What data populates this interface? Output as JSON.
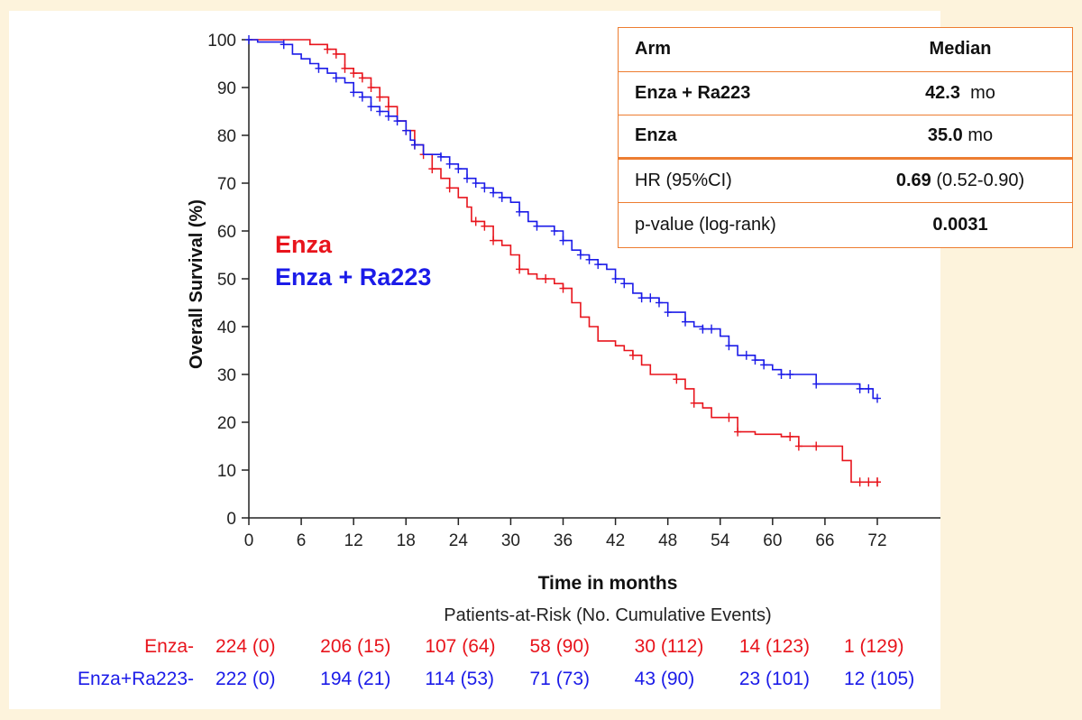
{
  "chart_data": {
    "type": "line",
    "title": "",
    "xlabel": "Time in months",
    "ylabel": "Overall Survival (%)",
    "xlim": [
      0,
      72
    ],
    "ylim": [
      0,
      100
    ],
    "x_ticks": [
      "0",
      "6",
      "12",
      "18",
      "24",
      "30",
      "36",
      "42",
      "48",
      "54",
      "60",
      "66",
      "72"
    ],
    "y_ticks": [
      "0",
      "10",
      "20",
      "30",
      "40",
      "50",
      "60",
      "70",
      "80",
      "90",
      "100"
    ],
    "grid": false,
    "legend": {
      "position": "upper-left-inside",
      "entries": [
        "Enza",
        "Enza + Ra223"
      ]
    },
    "series": [
      {
        "name": "Enza",
        "color": "#e8141c",
        "points": [
          [
            0,
            100
          ],
          [
            5.5,
            100
          ],
          [
            7,
            99
          ],
          [
            9,
            98
          ],
          [
            10,
            97
          ],
          [
            11,
            94
          ],
          [
            12,
            93
          ],
          [
            13,
            92
          ],
          [
            14,
            90
          ],
          [
            15,
            88
          ],
          [
            16,
            86
          ],
          [
            17,
            83
          ],
          [
            18,
            81
          ],
          [
            19,
            78
          ],
          [
            20,
            76
          ],
          [
            21,
            73
          ],
          [
            22,
            71
          ],
          [
            23,
            69
          ],
          [
            24,
            67
          ],
          [
            25,
            65
          ],
          [
            25.5,
            62
          ],
          [
            27,
            61
          ],
          [
            28,
            58
          ],
          [
            29,
            57
          ],
          [
            30,
            55
          ],
          [
            31,
            52
          ],
          [
            32,
            51
          ],
          [
            33,
            50
          ],
          [
            35,
            49
          ],
          [
            36,
            48
          ],
          [
            37,
            45
          ],
          [
            38,
            42
          ],
          [
            39,
            40
          ],
          [
            40,
            37
          ],
          [
            42,
            36
          ],
          [
            43,
            35
          ],
          [
            44,
            34
          ],
          [
            45,
            32
          ],
          [
            46,
            30
          ],
          [
            48,
            30
          ],
          [
            49,
            29
          ],
          [
            50,
            27
          ],
          [
            51,
            24
          ],
          [
            52,
            23
          ],
          [
            53,
            21
          ],
          [
            55,
            21
          ],
          [
            56,
            18
          ],
          [
            58,
            17.5
          ],
          [
            60,
            17.5
          ],
          [
            61,
            17
          ],
          [
            63,
            15
          ],
          [
            66,
            15
          ],
          [
            68,
            12
          ],
          [
            69,
            7.5
          ],
          [
            72,
            7.5
          ]
        ],
        "censor_x": [
          9,
          10,
          11,
          12,
          13,
          14,
          15,
          16,
          18,
          19,
          20,
          21,
          23,
          26,
          27,
          28,
          31,
          34,
          36,
          44,
          49,
          51,
          55,
          56,
          62,
          63,
          65,
          70,
          71,
          72,
          72
        ]
      },
      {
        "name": "Enza + Ra223",
        "color": "#1b1be8",
        "points": [
          [
            0,
            100
          ],
          [
            1,
            99.5
          ],
          [
            4,
            99
          ],
          [
            5,
            97
          ],
          [
            6,
            96
          ],
          [
            7,
            95
          ],
          [
            8,
            94
          ],
          [
            9,
            93
          ],
          [
            10,
            92
          ],
          [
            11,
            91
          ],
          [
            12,
            89
          ],
          [
            13,
            88
          ],
          [
            14,
            86
          ],
          [
            15,
            85
          ],
          [
            16,
            84
          ],
          [
            17,
            83
          ],
          [
            18,
            81
          ],
          [
            18.5,
            79
          ],
          [
            19,
            78
          ],
          [
            20,
            76
          ],
          [
            22,
            75.5
          ],
          [
            23,
            74
          ],
          [
            24,
            73
          ],
          [
            25,
            71
          ],
          [
            26,
            70
          ],
          [
            27,
            69
          ],
          [
            28,
            68
          ],
          [
            29,
            67
          ],
          [
            30,
            66
          ],
          [
            31,
            64
          ],
          [
            32,
            62
          ],
          [
            33,
            61
          ],
          [
            35,
            60
          ],
          [
            36,
            58
          ],
          [
            37,
            56
          ],
          [
            38,
            55
          ],
          [
            39,
            54
          ],
          [
            40,
            53
          ],
          [
            41,
            52
          ],
          [
            42,
            50
          ],
          [
            43,
            49
          ],
          [
            44,
            47
          ],
          [
            45,
            46
          ],
          [
            47,
            45
          ],
          [
            48,
            43
          ],
          [
            50,
            41
          ],
          [
            51,
            40
          ],
          [
            52,
            39.5
          ],
          [
            54,
            38
          ],
          [
            55,
            36
          ],
          [
            56,
            34
          ],
          [
            58,
            33
          ],
          [
            59,
            32
          ],
          [
            60,
            31
          ],
          [
            61,
            30
          ],
          [
            65,
            28
          ],
          [
            70,
            27
          ],
          [
            71.5,
            25
          ],
          [
            72,
            25
          ]
        ],
        "censor_x": [
          0,
          4,
          8,
          10,
          12,
          13,
          14,
          15,
          16,
          17,
          18,
          19,
          22,
          23,
          24,
          25,
          26,
          27,
          28,
          29,
          31,
          33,
          35,
          36,
          38,
          39,
          40,
          42,
          43,
          45,
          46,
          47,
          48,
          50,
          52,
          53,
          55,
          57,
          58,
          59,
          61,
          62,
          65,
          70,
          71,
          72
        ]
      }
    ],
    "risk_table": {
      "title": "Patients-at-Risk (No. Cumulative Events)",
      "rows": [
        {
          "label": "Enza-",
          "color": "#e8141c",
          "values": [
            "224 (0)",
            "206 (15)",
            "107 (64)",
            "58 (90)",
            "30 (112)",
            "14 (123)",
            "1 (129)"
          ]
        },
        {
          "label": "Enza+Ra223-",
          "color": "#1b1be8",
          "values": [
            "222 (0)",
            "194 (21)",
            "114 (53)",
            "71 (73)",
            "43 (90)",
            "23 (101)",
            "12 (105)"
          ]
        }
      ]
    }
  },
  "summary_table": {
    "header": {
      "arm": "Arm",
      "median": "Median"
    },
    "rows": [
      {
        "arm": "Enza + Ra223",
        "value": "42.3",
        "unit": "mo"
      },
      {
        "arm": "Enza",
        "value": "35.0",
        "unit": "mo"
      }
    ],
    "hr": {
      "label": "HR (95%CI)",
      "value": "0.69",
      "ci": "(0.52-0.90)"
    },
    "p": {
      "label": "p-value (log-rank)",
      "value": "0.0031"
    }
  },
  "colors": {
    "accent_border": "#ed7d31",
    "background": "#fdf3dc"
  }
}
